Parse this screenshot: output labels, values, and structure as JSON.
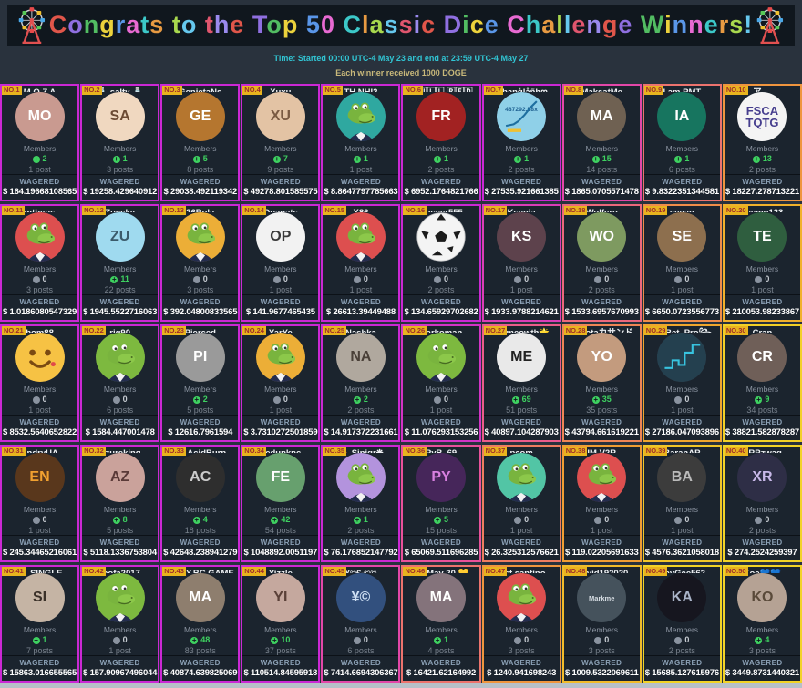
{
  "page": {
    "background": "#29323d",
    "bottom_strip_color": "#b7c0c8"
  },
  "header": {
    "title": "Congrats to the Top 50 Classic Dice Challenge Winners!",
    "background": "#10171e",
    "left_icon": "ferris-wheel",
    "right_icon": "ferris-wheel",
    "letter_palette": [
      "#e0564a",
      "#8f6fe0",
      "#52bd62",
      "#ecd23c",
      "#5a96e8",
      "#e86ad2",
      "#3cc8c8",
      "#e89a42",
      "#a8d84e",
      "#66c8ee",
      "#e0566e",
      "#9a8aee"
    ]
  },
  "meta": {
    "time_line": "Time: Started 00:00 UTC-4 May 23 and end at 23:59 UTC-4 May 27",
    "time_color": "#31c5d4",
    "reward_line": "Each winner received 1000 DOGE",
    "reward_color": "#c9b97a"
  },
  "labels": {
    "members": "Members",
    "wagered": "WAGERED"
  },
  "card_style": {
    "badge_bg": "#e8b41e",
    "badge_color": "#9e2b2b",
    "card_bg": "#1b242e",
    "border_gradient": [
      "#cb28d4",
      "#e94f9d",
      "#ee7a64",
      "#f0a02e",
      "#f2d326"
    ],
    "online_color": "#3ed160",
    "offline_color": "#8a93a0"
  },
  "winners": [
    {
      "rank": "NO.1",
      "name": "M O Z A",
      "members": 2,
      "posts": "1 post",
      "wagered": "$ 164.19668108565",
      "avatar": {
        "kind": "initials",
        "text": "MO",
        "bg": "#c99a90",
        "fg": "#ffffff"
      }
    },
    {
      "rank": "NO.2",
      "name": "🧂 salty 🧂",
      "members": 1,
      "posts": "3 posts",
      "wagered": "$ 19258.429640912",
      "avatar": {
        "kind": "initials",
        "text": "SA",
        "bg": "#f0d8c0",
        "fg": "#6b4a33"
      }
    },
    {
      "rank": "NO.3",
      "name": "GenietaNs",
      "members": 5,
      "posts": "8 posts",
      "wagered": "$ 29038.492119342",
      "avatar": {
        "kind": "initials",
        "text": "GE",
        "bg": "#b5762f",
        "fg": "#ffffff"
      }
    },
    {
      "rank": "NO.4",
      "name": "Xuxu",
      "members": 7,
      "posts": "9 posts",
      "wagered": "$ 49278.801585575",
      "avatar": {
        "kind": "initials",
        "text": "XU",
        "bg": "#e3c3a4",
        "fg": "#7a5a42"
      }
    },
    {
      "rank": "NO.5",
      "name": "TH NHI2",
      "members": 1,
      "posts": "1 post",
      "wagered": "$ 8.8647797785663",
      "avatar": {
        "kind": "croc",
        "bg": "#2fa8a0"
      }
    },
    {
      "rank": "NO.6",
      "name": "🄵🅄🄻🄻 🅁🄴🄳",
      "members": 1,
      "posts": "2 posts",
      "wagered": "$ 6952.1764821766",
      "avatar": {
        "kind": "initials",
        "text": "FR",
        "bg": "#a22222",
        "fg": "#ffffff"
      }
    },
    {
      "rank": "NO.7",
      "name": "ღbanģlåñhღ",
      "members": 1,
      "posts": "2 posts",
      "wagered": "$ 27535.921661385",
      "avatar": {
        "kind": "chart",
        "bg": "#8fd0e8",
        "line": "#1d6fa0",
        "text": "487292.58x"
      }
    },
    {
      "rank": "NO.8",
      "name": "MaksatMe",
      "members": 15,
      "posts": "14 posts",
      "wagered": "$ 1865.0705571478",
      "avatar": {
        "kind": "initials",
        "text": "MA",
        "bg": "#6f6152",
        "fg": "#ffffff"
      }
    },
    {
      "rank": "NO.9",
      "name": "I am PMT",
      "members": 1,
      "posts": "6 posts",
      "wagered": "$ 9.8322351344581",
      "avatar": {
        "kind": "initials",
        "text": "IA",
        "bg": "#17755f",
        "fg": "#ffffff"
      }
    },
    {
      "rank": "NO.10",
      "name": "ア_ᴗ",
      "members": 13,
      "posts": "2 posts",
      "wagered": "$ 18227.278713221",
      "avatar": {
        "kind": "logo",
        "text": "FSCA TQTG",
        "bg": "#f4f4f4",
        "fg": "#463e8e"
      }
    },
    {
      "rank": "NO.11",
      "name": "mtbyus",
      "members": 0,
      "posts": "3 posts",
      "wagered": "$ 1.0186080547329",
      "avatar": {
        "kind": "croc",
        "bg": "#dd4f4f"
      }
    },
    {
      "rank": "NO.12",
      "name": "Zuccky",
      "members": 11,
      "posts": "22 posts",
      "wagered": "$ 1945.5522716063",
      "avatar": {
        "kind": "initials",
        "text": "ZU",
        "bg": "#9fdaef",
        "fg": "#3a5a6a"
      }
    },
    {
      "rank": "NO.13",
      "name": "26Rola",
      "members": 0,
      "posts": "3 posts",
      "wagered": "$ 392.04800833565",
      "avatar": {
        "kind": "croc",
        "bg": "#ecae37"
      }
    },
    {
      "rank": "NO.14",
      "name": "Opanats",
      "members": 0,
      "posts": "1 post",
      "wagered": "$ 141.9677465435",
      "avatar": {
        "kind": "initials",
        "text": "OP",
        "bg": "#f2f2f2",
        "fg": "#3a3a3a"
      }
    },
    {
      "rank": "NO.15",
      "name": "X86",
      "members": 0,
      "posts": "1 post",
      "wagered": "$ 26613.39449488",
      "avatar": {
        "kind": "croc",
        "bg": "#dd4f4f"
      }
    },
    {
      "rank": "NO.16",
      "name": "Soccer555",
      "members": 0,
      "posts": "2 posts",
      "wagered": "$ 134.65929702682",
      "avatar": {
        "kind": "soccer",
        "bg": "#f4f4f4"
      }
    },
    {
      "rank": "NO.17",
      "name": "Ksenia",
      "members": 0,
      "posts": "1 post",
      "wagered": "$ 1933.9788214621",
      "avatar": {
        "kind": "initials",
        "text": "KS",
        "bg": "#5d424c",
        "fg": "#ffffff"
      }
    },
    {
      "rank": "NO.18",
      "name": "Wolfero",
      "members": 0,
      "posts": "2 posts",
      "wagered": "$ 1533.6957670993",
      "avatar": {
        "kind": "initials",
        "text": "WO",
        "bg": "#7e9a60",
        "fg": "#ffffff"
      }
    },
    {
      "rank": "NO.19",
      "name": "sevan",
      "members": 0,
      "posts": "1 post",
      "wagered": "$ 6650.0723556773",
      "avatar": {
        "kind": "initials",
        "text": "SE",
        "bg": "#8d6f4e",
        "fg": "#ffffff"
      }
    },
    {
      "rank": "NO.20",
      "name": "Teemo123",
      "members": 0,
      "posts": "1 post",
      "wagered": "$ 210053.98233867",
      "avatar": {
        "kind": "initials",
        "text": "TE",
        "bg": "#2f5e3f",
        "fg": "#ffffff"
      }
    },
    {
      "rank": "NO.21",
      "name": "bom88",
      "members": 0,
      "posts": "1 post",
      "wagered": "$ 8532.5640652822",
      "avatar": {
        "kind": "smiley",
        "bg": "#f6c244"
      }
    },
    {
      "rank": "NO.22",
      "name": "rig90",
      "members": 0,
      "posts": "6 posts",
      "wagered": "$ 1584.447001478",
      "avatar": {
        "kind": "croc",
        "bg": "#7db93f"
      }
    },
    {
      "rank": "NO.23",
      "name": "Pierced",
      "members": 2,
      "posts": "5 posts",
      "wagered": "$ 12616.7961594",
      "avatar": {
        "kind": "initials",
        "text": "PI",
        "bg": "#9a9a9a",
        "fg": "#ffffff"
      }
    },
    {
      "rank": "NO.24",
      "name": "YarYe",
      "members": 0,
      "posts": "1 post",
      "wagered": "$ 3.7310272501859",
      "avatar": {
        "kind": "croc",
        "bg": "#ecae37"
      }
    },
    {
      "rank": "NO.25",
      "name": "Nashka",
      "members": 2,
      "posts": "2 posts",
      "wagered": "$ 14.917372231661",
      "avatar": {
        "kind": "initials",
        "text": "NA",
        "bg": "#b0a89e",
        "fg": "#4a4038"
      }
    },
    {
      "rank": "NO.26",
      "name": "Narkoman",
      "members": 0,
      "posts": "1 post",
      "wagered": "$ 11.076293153256",
      "avatar": {
        "kind": "croc",
        "bg": "#7db93f"
      }
    },
    {
      "rank": "NO.27",
      "name": "🌟 meowth🌟",
      "members": 69,
      "posts": "51 posts",
      "wagered": "$ 40897.104287903",
      "avatar": {
        "kind": "initials",
        "text": "ME",
        "bg": "#e9e9e9",
        "fg": "#222222"
      }
    },
    {
      "rank": "NO.28",
      "name": "Yokotaカサンドラ",
      "members": 35,
      "posts": "35 posts",
      "wagered": "$ 43794.661619221",
      "avatar": {
        "kind": "initials",
        "text": "YO",
        "bg": "#c39b7e",
        "fg": "#ffffff"
      }
    },
    {
      "rank": "NO.29",
      "name": "꧁Bet_Pro꧂",
      "members": 0,
      "posts": "1 post",
      "wagered": "$ 27186.047093896",
      "avatar": {
        "kind": "chart",
        "bg": "#24404f",
        "line": "#38c4e0"
      }
    },
    {
      "rank": "NO.30",
      "name": "Cran",
      "members": 9,
      "posts": "34 posts",
      "wagered": "$ 38821.582878287",
      "avatar": {
        "kind": "initials",
        "text": "CR",
        "bg": "#6f5f58",
        "fg": "#ffffff"
      }
    },
    {
      "rank": "NO.31",
      "name": "EndryUA",
      "members": 0,
      "posts": "1 post",
      "wagered": "$ 245.34465216061",
      "avatar": {
        "kind": "initials",
        "text": "EN",
        "bg": "#59371c",
        "fg": "#f0a030"
      }
    },
    {
      "rank": "NO.32",
      "name": "Azureking",
      "members": 8,
      "posts": "5 posts",
      "wagered": "$ 5118.1336753804",
      "avatar": {
        "kind": "initials",
        "text": "AZ",
        "bg": "#caa29b",
        "fg": "#5a3a38"
      }
    },
    {
      "rank": "NO.33",
      "name": "🐵 AcidBurn",
      "members": 4,
      "posts": "18 posts",
      "wagered": "$ 42648.238941279",
      "avatar": {
        "kind": "initials",
        "text": "AC",
        "bg": "#2e2e2e",
        "fg": "#cccccc"
      }
    },
    {
      "rank": "NO.34",
      "name": "Fedupkpc",
      "members": 42,
      "posts": "54 posts",
      "wagered": "$ 1048892.0051197",
      "avatar": {
        "kind": "initials",
        "text": "FE",
        "bg": "#67a06e",
        "fg": "#ffffff"
      }
    },
    {
      "rank": "NO.35",
      "name": "🔥 Sinigr❋",
      "members": 1,
      "posts": "2 posts",
      "wagered": "$ 76.176852147792",
      "avatar": {
        "kind": "croc",
        "bg": "#b393dd"
      }
    },
    {
      "rank": "NO.36",
      "name": "PyB_69",
      "members": 5,
      "posts": "15 posts",
      "wagered": "$ 65069.511696285",
      "avatar": {
        "kind": "initials",
        "text": "PY",
        "bg": "#46265a",
        "fg": "#d880e0"
      }
    },
    {
      "rank": "NO.37",
      "name": "pcom",
      "members": 0,
      "posts": "1 post",
      "wagered": "$ 26.325312576621",
      "avatar": {
        "kind": "croc",
        "bg": "#52c5a5"
      }
    },
    {
      "rank": "NO.38",
      "name": "IM V2R",
      "members": 0,
      "posts": "1 post",
      "wagered": "$ 119.02205691633",
      "avatar": {
        "kind": "croc",
        "bg": "#dd4f4f"
      }
    },
    {
      "rank": "NO.39",
      "name": "BaranAP",
      "members": 0,
      "posts": "1 post",
      "wagered": "$ 4576.3621058018",
      "avatar": {
        "kind": "initials",
        "text": "BA",
        "bg": "#3c3c3c",
        "fg": "#bbbbbb"
      }
    },
    {
      "rank": "NO.40",
      "name": "XRPzwag",
      "members": 0,
      "posts": "2 posts",
      "wagered": "$ 274.2524259397",
      "avatar": {
        "kind": "initials",
        "text": "XR",
        "bg": "#2e2e46",
        "fg": "#c8b8e8"
      }
    },
    {
      "rank": "NO.41",
      "name": "🌹 SINGLE AREMY 🌹",
      "members": 1,
      "posts": "7 posts",
      "wagered": "$ 15863.016655565",
      "avatar": {
        "kind": "initials",
        "text": "SI",
        "bg": "#c5b4a4",
        "fg": "#3a3028"
      }
    },
    {
      "rank": "NO.42",
      "name": "foofa2017",
      "members": 0,
      "posts": "1 post",
      "wagered": "$ 157.90967496044",
      "avatar": {
        "kind": "croc",
        "bg": "#7db93f"
      }
    },
    {
      "rank": "NO.43",
      "name": "MARY.BC.GAME🇵🇭",
      "members": 48,
      "posts": "83 posts",
      "wagered": "$ 40874.639825069",
      "avatar": {
        "kind": "initials",
        "text": "MA",
        "bg": "#8e7e6e",
        "fg": "#ffffff"
      }
    },
    {
      "rank": "NO.44",
      "name": "Yizzle",
      "members": 10,
      "posts": "37 posts",
      "wagered": "$ 110514.84595918",
      "avatar": {
        "kind": "initials",
        "text": "YI",
        "bg": "#c5a89e",
        "fg": "#5a4038"
      }
    },
    {
      "rank": "NO.45",
      "name": "¥©€-©©",
      "members": 0,
      "posts": "6 posts",
      "wagered": "$ 7414.6694306367",
      "avatar": {
        "kind": "initials",
        "text": "¥©",
        "bg": "#32507e",
        "fg": "#cfe0f4"
      }
    },
    {
      "rank": "NO.46",
      "name": "💛 May 20 💛",
      "members": 1,
      "posts": "4 posts",
      "wagered": "$ 16421.62164992",
      "avatar": {
        "kind": "initials",
        "text": "MA",
        "bg": "#84737b",
        "fg": "#ffffff"
      }
    },
    {
      "rank": "NO.47",
      "name": "last santino",
      "members": 0,
      "posts": "3 posts",
      "wagered": "$ 1240.941698243",
      "avatar": {
        "kind": "croc",
        "bg": "#dd4f4f"
      }
    },
    {
      "rank": "NO.48",
      "name": "Covid192020",
      "members": 0,
      "posts": "3 posts",
      "wagered": "$ 1009.5322069611",
      "avatar": {
        "kind": "initials",
        "text": "Markme",
        "bg": "#45525c",
        "fg": "#d8dee4"
      }
    },
    {
      "rank": "NO.49",
      "name": "KayGee562",
      "members": 0,
      "posts": "2 posts",
      "wagered": "$ 15685.127615976",
      "avatar": {
        "kind": "initials",
        "text": "KA",
        "bg": "#16161f",
        "fg": "#aab4c8"
      }
    },
    {
      "rank": "NO.50",
      "name": "Koe💙💙",
      "members": 4,
      "posts": "3 posts",
      "wagered": "$ 3449.8731440321",
      "avatar": {
        "kind": "initials",
        "text": "KO",
        "bg": "#b5a294",
        "fg": "#5a4a3a"
      }
    }
  ]
}
